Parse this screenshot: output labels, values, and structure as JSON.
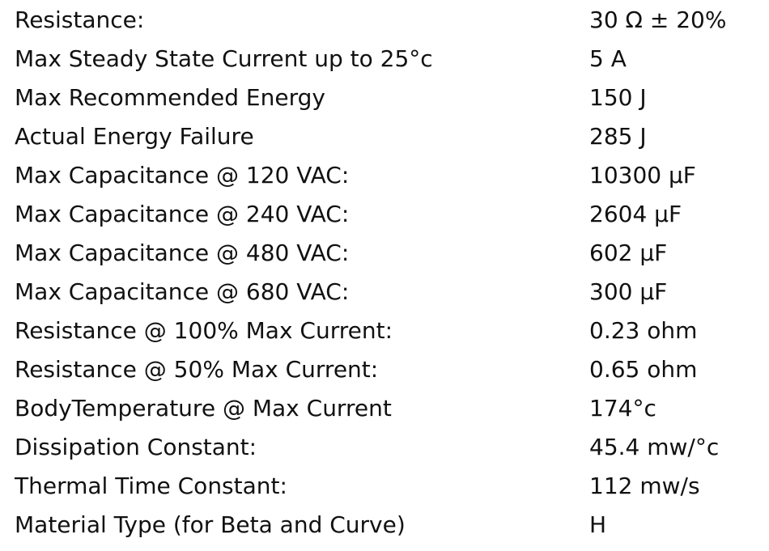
{
  "table": {
    "rows": [
      [
        "Resistance:",
        "30 Ω ± 20%"
      ],
      [
        "Max Steady State Current up to 25°c",
        "5 A"
      ],
      [
        "Max Recommended Energy",
        "150 J"
      ],
      [
        "Actual Energy Failure",
        "285 J"
      ],
      [
        "Max Capacitance @ 120 VAC:",
        "10300 µF"
      ],
      [
        "Max Capacitance @ 240 VAC:",
        "2604 µF"
      ],
      [
        "Max Capacitance @ 480 VAC:",
        "602 µF"
      ],
      [
        "Max Capacitance @ 680 VAC:",
        "300 µF"
      ],
      [
        "Resistance @ 100% Max Current:",
        "0.23 ohm"
      ],
      [
        "Resistance @ 50% Max Current:",
        "0.65 ohm"
      ],
      [
        "BodyTemperature @ Max Current",
        "174°c"
      ],
      [
        "Dissipation Constant:",
        "45.4 mw/°c"
      ],
      [
        "Thermal Time Constant:",
        "112 mw/s"
      ],
      [
        "Material Type (for Beta and Curve)",
        "H"
      ]
    ]
  }
}
